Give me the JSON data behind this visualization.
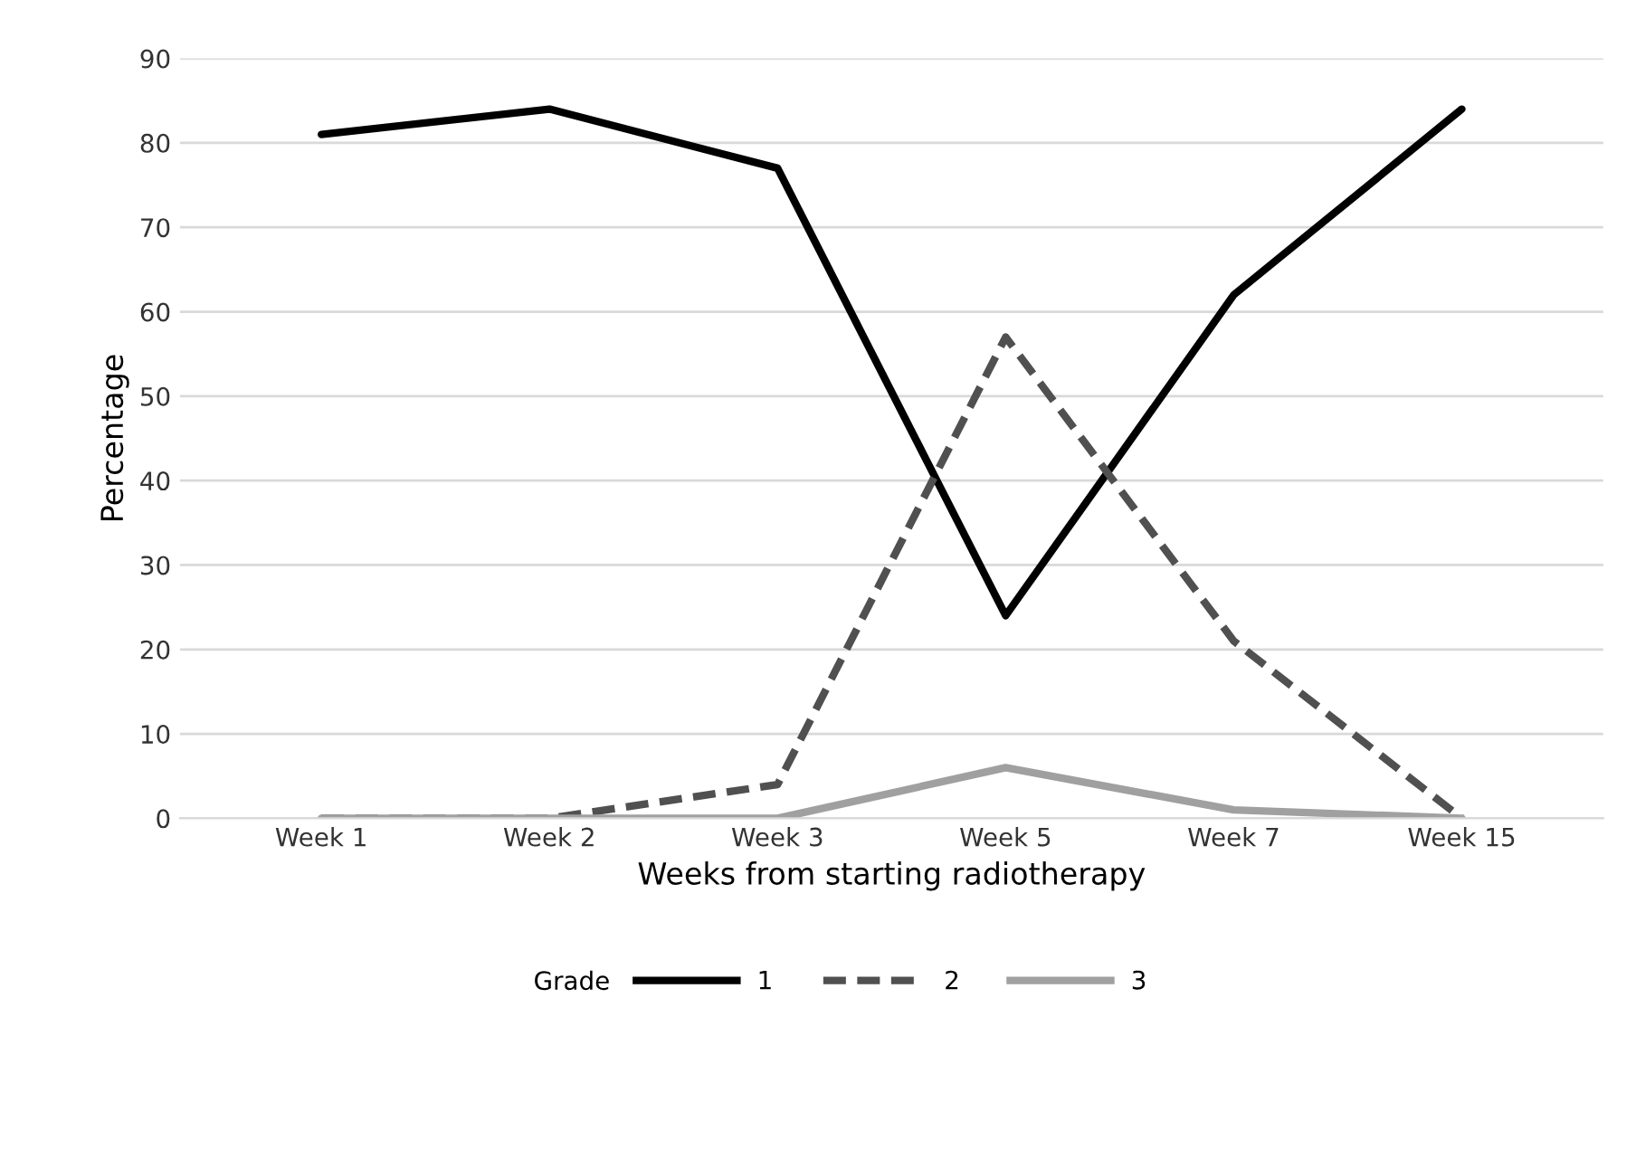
{
  "chart_data": {
    "type": "line",
    "xlabel": "Weeks from starting radiotherapy",
    "ylabel": "Percentage",
    "legend_title": "Grade",
    "categories": [
      "Week 1",
      "Week 2",
      "Week 3",
      "Week 5",
      "Week 7",
      "Week 15"
    ],
    "series": [
      {
        "name": "1",
        "color": "#000000",
        "line_style": "solid",
        "values": [
          81,
          84,
          77,
          24,
          62,
          84
        ]
      },
      {
        "name": "2",
        "color": "#505050",
        "line_style": "dashed",
        "values": [
          0,
          0,
          4,
          57,
          21,
          0
        ]
      },
      {
        "name": "3",
        "color": "#a0a0a0",
        "line_style": "solid",
        "values": [
          0,
          0,
          0,
          6,
          1,
          0
        ]
      }
    ],
    "ylim": [
      0,
      90
    ],
    "yticks": [
      0,
      10,
      20,
      30,
      40,
      50,
      60,
      70,
      80,
      90
    ],
    "grid": "y",
    "legend": "bottom"
  }
}
